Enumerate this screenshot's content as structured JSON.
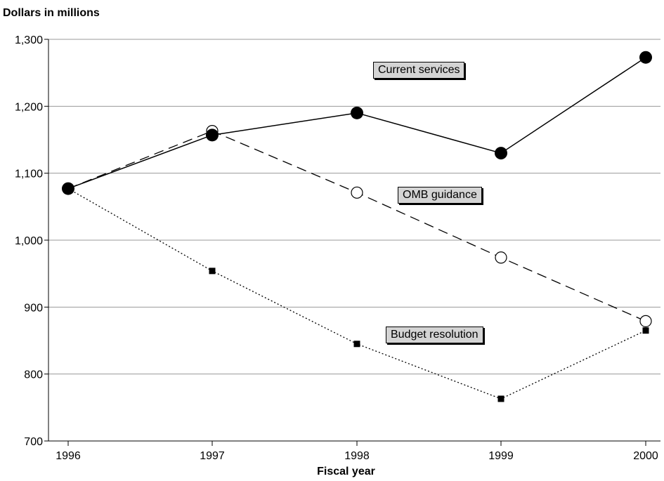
{
  "chart_data": {
    "type": "line",
    "title": "",
    "ylabel": "Dollars in millions",
    "xlabel": "Fiscal year",
    "x": [
      "1996",
      "1997",
      "1998",
      "1999",
      "2000"
    ],
    "ylim": [
      700,
      1300
    ],
    "yticks": [
      700,
      800,
      900,
      1000,
      1100,
      1200,
      1300
    ],
    "ytick_labels": [
      "700",
      "800",
      "900",
      "1,000",
      "1,100",
      "1,200",
      "1,300"
    ],
    "grid": "horizontal",
    "series": [
      {
        "name": "Current services",
        "values": [
          1077,
          1157,
          1190,
          1130,
          1273
        ],
        "style": "solid",
        "marker": "filled-circle",
        "color": "#000000"
      },
      {
        "name": "OMB guidance",
        "values": [
          1077,
          1163,
          1071,
          974,
          879
        ],
        "style": "dashed",
        "marker": "open-circle",
        "color": "#000000"
      },
      {
        "name": "Budget resolution",
        "values": [
          1077,
          954,
          845,
          763,
          865
        ],
        "style": "dotted",
        "marker": "filled-square",
        "color": "#000000"
      }
    ]
  },
  "annotations": {
    "current": "Current services",
    "omb": "OMB guidance",
    "budget": "Budget resolution"
  },
  "colors": {
    "annotation_bg": "#d4d4d4",
    "grid": "#999999"
  }
}
